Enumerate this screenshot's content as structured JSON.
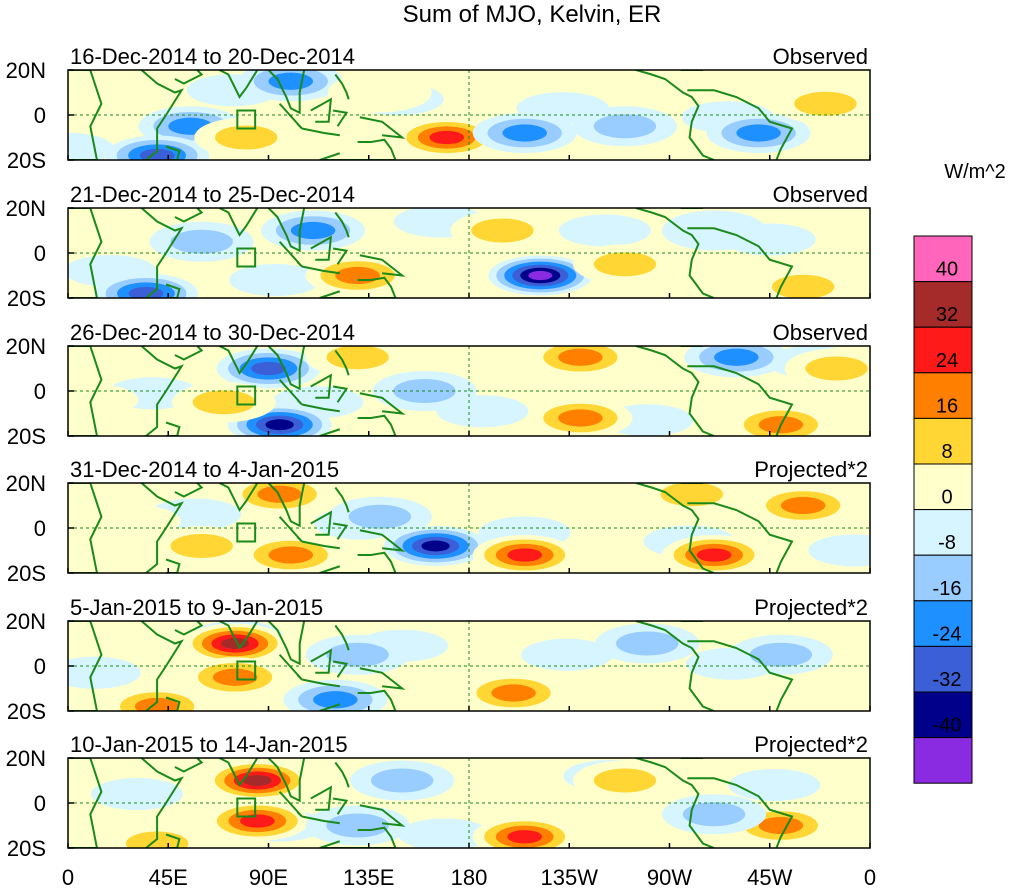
{
  "title": "Sum of MJO, Kelvin, ER",
  "unit": "W/m^2",
  "panels": [
    {
      "period": "16-Dec-2014 to 20-Dec-2014",
      "type": "Observed"
    },
    {
      "period": "21-Dec-2014 to 25-Dec-2014",
      "type": "Observed"
    },
    {
      "period": "26-Dec-2014 to 30-Dec-2014",
      "type": "Observed"
    },
    {
      "period": "31-Dec-2014 to 4-Jan-2015",
      "type": "Projected*2"
    },
    {
      "period": "5-Jan-2015 to 9-Jan-2015",
      "type": "Projected*2"
    },
    {
      "period": "10-Jan-2015 to 14-Jan-2015",
      "type": "Projected*2"
    }
  ],
  "lat_labels": [
    "20N",
    "0",
    "20S"
  ],
  "lon_labels": [
    "0",
    "45E",
    "90E",
    "135E",
    "180",
    "135W",
    "90W",
    "45W",
    "0"
  ],
  "colorbar": {
    "levels": [
      "40",
      "32",
      "24",
      "16",
      "8",
      "0",
      "-8",
      "-16",
      "-24",
      "-32",
      "-40"
    ],
    "colors": [
      "#ff66bb",
      "#a52a2a",
      "#ff1a1a",
      "#ff7f00",
      "#ffd633",
      "#ffffcc",
      "#d6f5ff",
      "#99ccff",
      "#1e90ff",
      "#3b5fd6",
      "#00008b",
      "#8a2be2"
    ]
  },
  "anomalies": [
    [
      {
        "lon": 55,
        "lat": -5,
        "v": -22
      },
      {
        "lon": 40,
        "lat": -18,
        "v": -32
      },
      {
        "lon": 100,
        "lat": 15,
        "v": -20
      },
      {
        "lon": 170,
        "lat": -10,
        "v": 28
      },
      {
        "lon": 205,
        "lat": -8,
        "v": -24
      },
      {
        "lon": 250,
        "lat": -5,
        "v": -12
      },
      {
        "lon": 310,
        "lat": -8,
        "v": -22
      },
      {
        "lon": 340,
        "lat": 5,
        "v": 14
      },
      {
        "lon": 80,
        "lat": -10,
        "v": 12
      },
      {
        "lon": 140,
        "lat": 10,
        "v": 8
      }
    ],
    [
      {
        "lon": 35,
        "lat": -18,
        "v": -30
      },
      {
        "lon": 110,
        "lat": 10,
        "v": -22
      },
      {
        "lon": 130,
        "lat": -10,
        "v": 24
      },
      {
        "lon": 195,
        "lat": 10,
        "v": 14
      },
      {
        "lon": 212,
        "lat": -10,
        "v": -42
      },
      {
        "lon": 250,
        "lat": -5,
        "v": 12
      },
      {
        "lon": 330,
        "lat": -15,
        "v": 14
      },
      {
        "lon": 60,
        "lat": 5,
        "v": -10
      },
      {
        "lon": 290,
        "lat": 10,
        "v": -8
      }
    ],
    [
      {
        "lon": 90,
        "lat": 10,
        "v": -30
      },
      {
        "lon": 95,
        "lat": -15,
        "v": -34
      },
      {
        "lon": 70,
        "lat": -5,
        "v": 14
      },
      {
        "lon": 130,
        "lat": 15,
        "v": 12
      },
      {
        "lon": 230,
        "lat": 15,
        "v": 20
      },
      {
        "lon": 300,
        "lat": 15,
        "v": -22
      },
      {
        "lon": 320,
        "lat": -15,
        "v": 22
      },
      {
        "lon": 230,
        "lat": -12,
        "v": 18
      },
      {
        "lon": 345,
        "lat": 10,
        "v": 16
      },
      {
        "lon": 160,
        "lat": 0,
        "v": -10
      }
    ],
    [
      {
        "lon": 95,
        "lat": 15,
        "v": 18
      },
      {
        "lon": 100,
        "lat": -12,
        "v": 24
      },
      {
        "lon": 165,
        "lat": -8,
        "v": -36
      },
      {
        "lon": 205,
        "lat": -12,
        "v": 28
      },
      {
        "lon": 280,
        "lat": 15,
        "v": 16
      },
      {
        "lon": 290,
        "lat": -12,
        "v": 26
      },
      {
        "lon": 330,
        "lat": 10,
        "v": 18
      },
      {
        "lon": 60,
        "lat": -8,
        "v": 10
      },
      {
        "lon": 140,
        "lat": 5,
        "v": -12
      }
    ],
    [
      {
        "lon": 75,
        "lat": 10,
        "v": 36
      },
      {
        "lon": 75,
        "lat": -5,
        "v": 24
      },
      {
        "lon": 40,
        "lat": -18,
        "v": 20
      },
      {
        "lon": 130,
        "lat": 5,
        "v": -14
      },
      {
        "lon": 200,
        "lat": -12,
        "v": 18
      },
      {
        "lon": 120,
        "lat": -15,
        "v": -18
      },
      {
        "lon": 260,
        "lat": 10,
        "v": -10
      },
      {
        "lon": 320,
        "lat": 5,
        "v": -10
      }
    ],
    [
      {
        "lon": 85,
        "lat": 10,
        "v": 38
      },
      {
        "lon": 85,
        "lat": -8,
        "v": 26
      },
      {
        "lon": 40,
        "lat": -18,
        "v": 14
      },
      {
        "lon": 130,
        "lat": -10,
        "v": -16
      },
      {
        "lon": 205,
        "lat": -15,
        "v": 26
      },
      {
        "lon": 250,
        "lat": 10,
        "v": 12
      },
      {
        "lon": 320,
        "lat": -10,
        "v": 18
      },
      {
        "lon": 150,
        "lat": 10,
        "v": -12
      },
      {
        "lon": 290,
        "lat": -5,
        "v": -10
      }
    ]
  ]
}
